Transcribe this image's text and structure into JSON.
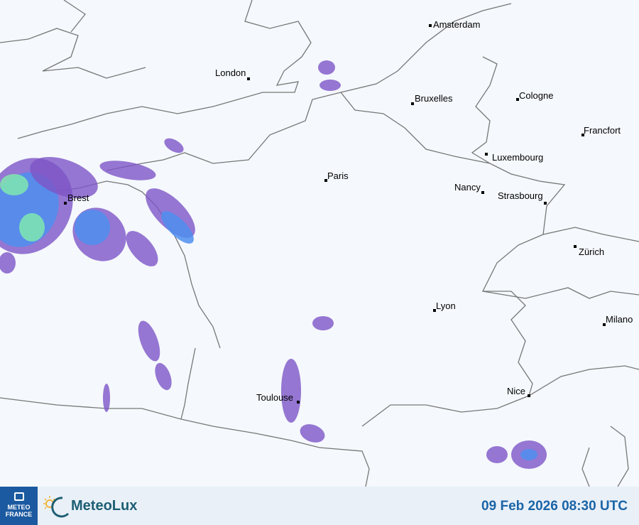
{
  "map": {
    "type": "precipitation radar",
    "colors": {
      "background": "#f5f8fc",
      "border": "#777777",
      "rain_light": "#7d55c7",
      "rain_moderate": "#4f8ff0",
      "rain_heavy": "#7fe8b0"
    },
    "cities": [
      "Amsterdam",
      "London",
      "Bruxelles",
      "Cologne",
      "Francfort",
      "Luxembourg",
      "Paris",
      "Nancy",
      "Strasbourg",
      "Zürich",
      "Brest",
      "Lyon",
      "Milano",
      "Nice",
      "Toulouse"
    ]
  },
  "footer": {
    "meteofrance_logo": "METEO FRANCE",
    "meteolux_label": "MeteoLux",
    "timestamp": "09 Feb 2026 08:30 UTC"
  }
}
